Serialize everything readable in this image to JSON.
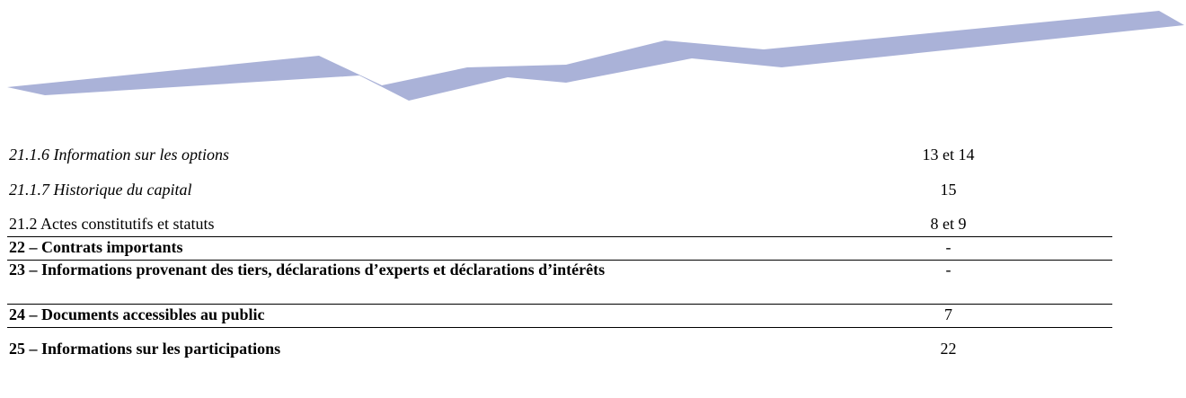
{
  "table": {
    "rows": [
      [
        "21.1.6 Information sur les options",
        "13 et 14"
      ],
      [
        "21.1.7 Historique du capital",
        "15"
      ],
      [
        "21.2 Actes constitutifs et statuts",
        "8 et 9"
      ],
      [
        "22 – Contrats importants",
        "-"
      ],
      [
        "23 – Informations provenant des tiers, déclarations d’experts et déclarations d’intérêts",
        "-"
      ],
      [
        "24 – Documents accessibles au public",
        "7"
      ],
      [
        "25 – Informations sur les participations",
        "22"
      ]
    ]
  }
}
